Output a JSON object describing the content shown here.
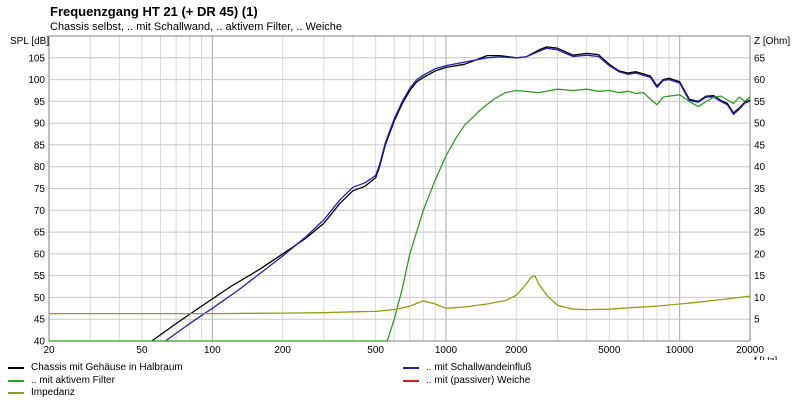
{
  "chart_data": {
    "type": "line",
    "title": "Frequenzgang HT 21 (+ DR 45) (1)",
    "subtitle": "Chassis selbst, .. mit Schallwand, .. aktivem Filter, .. Weiche",
    "xlabel": "f [Hz]",
    "ylabel": "SPL [dB]",
    "y2label": "Z [Ohm]",
    "x_scale": "log",
    "xlim": [
      20,
      20000
    ],
    "ylim": [
      40,
      110
    ],
    "y2lim": [
      0,
      70
    ],
    "grid": true,
    "legend_position": "bottom",
    "xticks": [
      20,
      50,
      100,
      200,
      500,
      1000,
      2000,
      5000,
      10000,
      20000
    ],
    "xtick_labels": [
      "20",
      "50",
      "100",
      "200",
      "500",
      "1000",
      "2000",
      "5000",
      "10000",
      "20000"
    ],
    "yticks": [
      40,
      45,
      50,
      55,
      60,
      65,
      70,
      75,
      80,
      85,
      90,
      95,
      100,
      105
    ],
    "y2ticks": [
      5,
      10,
      15,
      20,
      25,
      30,
      35,
      40,
      45,
      50,
      55,
      60,
      65
    ],
    "series": [
      {
        "name": "Chassis mit Gehäuse in Halbraum",
        "color": "#000000",
        "axis": "left",
        "x": [
          55,
          70,
          90,
          120,
          160,
          200,
          250,
          300,
          350,
          400,
          450,
          500,
          520,
          550,
          600,
          650,
          700,
          750,
          800,
          900,
          1000,
          1200,
          1500,
          1700,
          2000,
          2200,
          2500,
          2700,
          3000,
          3500,
          4000,
          4500,
          5000,
          5500,
          6000,
          6500,
          7000,
          7500,
          8000,
          8500,
          9000,
          10000,
          11000,
          12000,
          13000,
          14000,
          15000,
          16000,
          17000,
          18000,
          19000,
          20000
        ],
        "y": [
          40,
          44,
          48,
          52.5,
          56.5,
          60,
          63.5,
          67,
          71.5,
          74.5,
          75.5,
          77.5,
          80,
          85,
          90.5,
          94.5,
          97.5,
          99.5,
          100.5,
          102,
          102.8,
          103.5,
          105.5,
          105.5,
          105,
          105.2,
          106.8,
          107.5,
          107.2,
          105.6,
          106,
          105.7,
          103.5,
          102,
          101.5,
          101.8,
          101.3,
          100.8,
          98.5,
          100,
          100.3,
          99.5,
          95.5,
          95,
          96.2,
          96.3,
          95.2,
          94.5,
          92.3,
          93.5,
          94.8,
          95.3
        ]
      },
      {
        "name": ".. mit Schallwandeinfluß",
        "color": "#1f1fb4",
        "axis": "left",
        "x": [
          63,
          80,
          100,
          130,
          160,
          200,
          250,
          300,
          350,
          400,
          450,
          500,
          520,
          550,
          600,
          650,
          700,
          750,
          800,
          900,
          1000,
          1200,
          1500,
          1700,
          2000,
          2200,
          2500,
          2700,
          3000,
          3500,
          4000,
          4500,
          5000,
          5500,
          6000,
          6500,
          7000,
          7500,
          8000,
          8500,
          9000,
          10000,
          11000,
          12000,
          13000,
          14000,
          15000,
          16000,
          17000,
          18000,
          19000,
          20000
        ],
        "y": [
          40,
          44,
          47.5,
          51.8,
          55.5,
          59.5,
          63.8,
          67.8,
          72.3,
          75.3,
          76.3,
          78,
          80.5,
          85.5,
          91,
          95,
          98,
          100,
          101,
          102.5,
          103.2,
          104,
          105,
          105.2,
          105,
          105.2,
          106.5,
          107.2,
          106.8,
          105.3,
          105.6,
          105.3,
          103.2,
          101.8,
          101.2,
          101.5,
          101,
          100.5,
          98.2,
          99.8,
          100,
          99.2,
          95.2,
          94.8,
          96,
          96,
          95,
          94.2,
          92,
          93.2,
          94.6,
          95.1
        ]
      },
      {
        "name": ".. mit aktivem Filter",
        "color": "#2e9e24",
        "axis": "left",
        "x": [
          20,
          100,
          500,
          560,
          600,
          650,
          700,
          800,
          900,
          1000,
          1100,
          1200,
          1400,
          1600,
          1800,
          2000,
          2500,
          3000,
          3500,
          4000,
          4500,
          5000,
          5500,
          6000,
          6500,
          7000,
          7500,
          8000,
          8500,
          9000,
          10000,
          11000,
          12000,
          13000,
          14000,
          15000,
          16000,
          17000,
          18000,
          19000,
          20000
        ],
        "y": [
          40,
          40,
          40,
          40,
          45,
          52,
          60,
          70,
          77,
          82.5,
          86.5,
          89.5,
          93,
          95.5,
          97,
          97.5,
          97,
          97.8,
          97.5,
          97.8,
          97.3,
          97.5,
          97,
          97.3,
          96.8,
          97,
          95.5,
          94.2,
          96,
          96.2,
          96.5,
          95,
          93.8,
          95,
          96,
          96.2,
          95.3,
          94.5,
          96,
          95,
          96
        ]
      },
      {
        "name": ".. mit (passiver) Weiche",
        "color": "#d42020",
        "axis": "left",
        "x": [],
        "y": []
      },
      {
        "name": "Impedanz",
        "color": "#9a9a10",
        "axis": "right",
        "x": [
          20,
          100,
          200,
          300,
          400,
          500,
          600,
          700,
          800,
          900,
          1000,
          1200,
          1500,
          1800,
          2000,
          2200,
          2300,
          2400,
          2500,
          2700,
          3000,
          3500,
          4000,
          5000,
          6000,
          8000,
          10000,
          12000,
          15000,
          20000
        ],
        "y": [
          6.3,
          6.3,
          6.4,
          6.5,
          6.7,
          6.8,
          7.2,
          8,
          9.2,
          8.5,
          7.5,
          7.8,
          8.5,
          9.3,
          10.5,
          13,
          14.5,
          15,
          13,
          10.5,
          8.2,
          7.3,
          7.2,
          7.3,
          7.6,
          8,
          8.5,
          8.9,
          9.5,
          10.3
        ]
      }
    ]
  }
}
